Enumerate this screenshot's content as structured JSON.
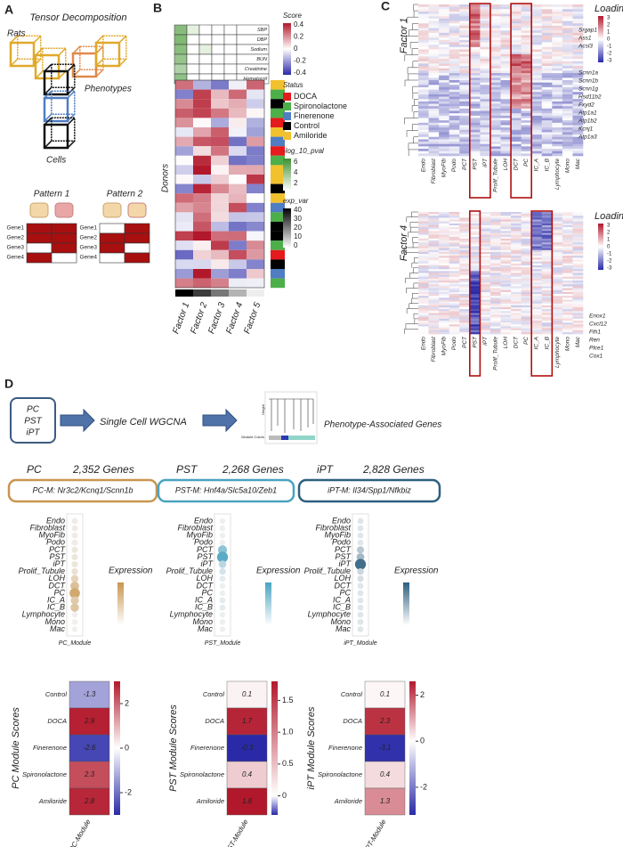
{
  "panels": {
    "a": "A",
    "b": "B",
    "c": "C",
    "d": "D"
  },
  "panel_a": {
    "title": "Tensor Decomposition",
    "rats": "Rats",
    "phenotypes": "Phenotypes",
    "cells": "Cells",
    "patterns": [
      {
        "title": "Pattern 1",
        "genes": [
          "Gene1",
          "Gene2",
          "Gene3",
          "Gene4"
        ]
      },
      {
        "title": "Pattern 2",
        "genes": [
          "Gene1",
          "Gene2",
          "Gene3",
          "Gene4"
        ]
      }
    ]
  },
  "panel_b": {
    "phenotypes": [
      "SBP",
      "DBP",
      "Sodium",
      "BUN",
      "Creatinine",
      "Hematocrit"
    ],
    "score_title": "Score",
    "score_ticks": [
      0.4,
      0.2,
      0,
      -0.2,
      -0.4
    ],
    "status_title": "Status",
    "status": [
      {
        "name": "DOCA",
        "color": "#e41a1c"
      },
      {
        "name": "Spironolactone",
        "color": "#4daf4a"
      },
      {
        "name": "Finerenone",
        "color": "#4f7ec3"
      },
      {
        "name": "Control",
        "color": "#000000"
      },
      {
        "name": "Amiloride",
        "color": "#f2c12e"
      }
    ],
    "pval_title": "-log_10_pval",
    "pval_ticks": [
      6,
      4,
      2
    ],
    "expvar_title": "exp_var",
    "expvar_ticks": [
      40,
      30,
      20,
      10,
      0
    ],
    "donors": "Donors",
    "factors": [
      "Factor 1",
      "Factor 2",
      "Factor 3",
      "Factor 4",
      "Factor 5"
    ]
  },
  "panel_c": {
    "loading": "Loading",
    "loading_ticks": [
      3,
      2,
      1,
      0,
      -1,
      -2,
      -3
    ],
    "cell_types": [
      "Endo",
      "Fibroblast",
      "MyoFib",
      "Podo",
      "PCT",
      "PST",
      "iPT",
      "Prolif_Tubule",
      "LOH",
      "DCT",
      "PC",
      "IC_A",
      "IC_B",
      "Lymphocyte",
      "Mono",
      "Mac"
    ],
    "factors": [
      {
        "title": "Factor 1",
        "genes": [
          "Srgap1",
          "Ass1",
          "Acsl3",
          "Scnn1a",
          "Scnn1b",
          "Scnn1g",
          "Hsd11b2",
          "Fxyd2",
          "Atp1a1",
          "Atp1b2",
          "Kcnj1",
          "Atp1a3"
        ]
      },
      {
        "title": "Factor 4",
        "genes": [
          "Enox1",
          "Cxcl12",
          "Fth1",
          "Ren",
          "Plce1",
          "Cox1"
        ]
      }
    ]
  },
  "panel_d": {
    "modules": [
      "PC",
      "PST",
      "iPT"
    ],
    "wgcna": "Single Cell WGCNA",
    "height": "Height",
    "module_colors": "Module Colors",
    "result": "Phenotype-Associated Genes",
    "expression": "Expression",
    "cell_types": [
      "Endo",
      "Fibroblast",
      "MyoFib",
      "Podo",
      "PCT",
      "PST",
      "iPT",
      "Prolif_Tubule",
      "LOH",
      "DCT",
      "PC",
      "IC_A",
      "IC_B",
      "Lymphocyte",
      "Mono",
      "Mac"
    ],
    "conditions": [
      "Control",
      "DOCA",
      "Finerenone",
      "Spironolactone",
      "Amiloride"
    ],
    "columns": [
      {
        "name": "PC",
        "genes": "2,352 Genes",
        "module": "PC-M: Nr3c2/Kcnq1/Scnn1b",
        "color": "#c8964f",
        "dot_label": "PC_Module",
        "dots": [
          0.1,
          0.1,
          0.1,
          0.1,
          0.15,
          0.15,
          0.15,
          0.2,
          0.35,
          0.55,
          0.8,
          0.45,
          0.5,
          0.05,
          0.05,
          0.05
        ],
        "score_title": "PC Module Scores",
        "x_label": "PC-Module",
        "scores": [
          -1.3,
          2.9,
          -2.6,
          2.3,
          2.8
        ],
        "score_ticks": [
          2,
          0,
          -2
        ],
        "color_range": [
          -3,
          3
        ]
      },
      {
        "name": "PST",
        "genes": "2,268 Genes",
        "module": "PST-M: Hnf4a/Slc5a10/Zeb1",
        "color": "#4aa3c0",
        "dot_label": "PST_Module",
        "dots": [
          0.05,
          0.05,
          0.05,
          0.05,
          0.6,
          0.9,
          0.35,
          0.2,
          0.1,
          0.05,
          0.05,
          0.1,
          0.1,
          0.05,
          0.05,
          0.05
        ],
        "score_title": "PST Module Scores",
        "x_label": "PST-Module",
        "scores": [
          0.1,
          1.7,
          -0.3,
          0.4,
          1.8
        ],
        "score_ticks": [
          1.5,
          {
            "value": 1,
            "label": "1.0"
          },
          0.5,
          0
        ],
        "color_range": [
          -0.3,
          1.8
        ]
      },
      {
        "name": "iPT",
        "genes": "2,828 Genes",
        "module": "iPT-M: Il34/Spp1/Nfkbiz",
        "color": "#2d5f7f",
        "dot_label": "iPT_Module",
        "dots": [
          0.1,
          0.1,
          0.1,
          0.1,
          0.3,
          0.4,
          0.9,
          0.2,
          0.15,
          0.1,
          0.1,
          0.1,
          0.1,
          0.1,
          0.1,
          0.1
        ],
        "score_title": "iPT Module Scores",
        "x_label": "iPT-Module",
        "scores": [
          0.1,
          2.3,
          -3.1,
          0.4,
          1.3
        ],
        "score_ticks": [
          2,
          0,
          -2
        ],
        "color_range": [
          -3.2,
          2.6
        ]
      }
    ]
  }
}
